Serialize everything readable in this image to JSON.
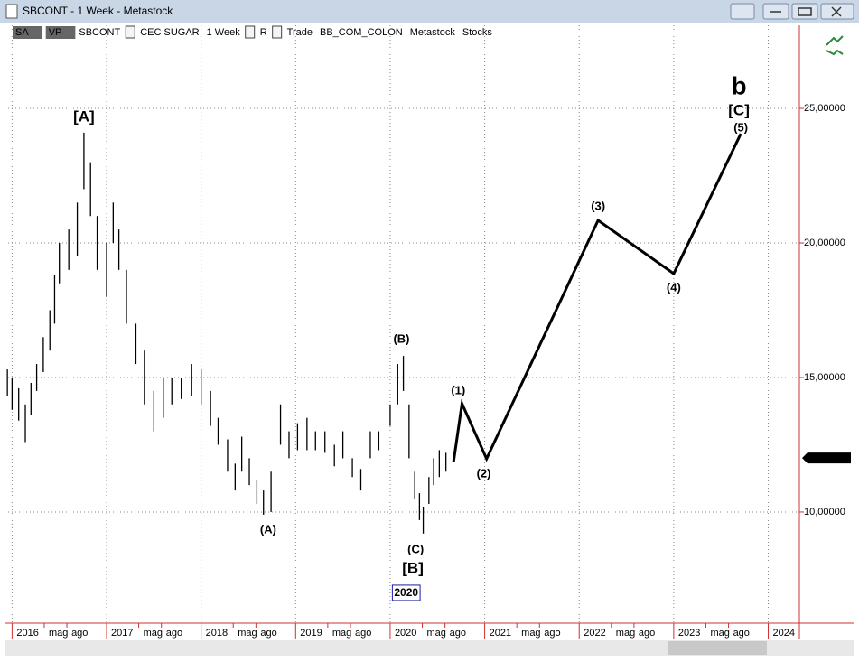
{
  "window": {
    "title": "SBCONT - 1 Week - Metastock"
  },
  "toolbar": {
    "items": [
      "SA",
      "VP",
      "SBCONT",
      "CEC SUGAR",
      "1 Week",
      "R",
      "Trade",
      "BB_COM_COLON",
      "Metastock",
      "Stocks"
    ]
  },
  "chart_data": {
    "type": "bar-wave",
    "bar_color": "#000000",
    "wave_color": "#000000",
    "grid": true,
    "last_price_box": "#000000",
    "xlim": [
      2015.92,
      2024.32
    ],
    "ylim": [
      5.87,
      28.09
    ],
    "xticks": [
      {
        "value": 2016,
        "label": "2016"
      },
      {
        "value": 2016.34,
        "label": "mag"
      },
      {
        "value": 2016.58,
        "label": "ago"
      },
      {
        "value": 2017,
        "label": "2017"
      },
      {
        "value": 2017.34,
        "label": "mag"
      },
      {
        "value": 2017.58,
        "label": "ago"
      },
      {
        "value": 2018,
        "label": "2018"
      },
      {
        "value": 2018.34,
        "label": "mag"
      },
      {
        "value": 2018.58,
        "label": "ago"
      },
      {
        "value": 2019,
        "label": "2019"
      },
      {
        "value": 2019.34,
        "label": "mag"
      },
      {
        "value": 2019.58,
        "label": "ago"
      },
      {
        "value": 2020,
        "label": "2020"
      },
      {
        "value": 2020.34,
        "label": "mag"
      },
      {
        "value": 2020.58,
        "label": "ago"
      },
      {
        "value": 2021,
        "label": "2021"
      },
      {
        "value": 2021.34,
        "label": "mag"
      },
      {
        "value": 2021.58,
        "label": "ago"
      },
      {
        "value": 2022,
        "label": "2022"
      },
      {
        "value": 2022.34,
        "label": "mag"
      },
      {
        "value": 2022.58,
        "label": "ago"
      },
      {
        "value": 2023,
        "label": "2023"
      },
      {
        "value": 2023.34,
        "label": "mag"
      },
      {
        "value": 2023.58,
        "label": "ago"
      },
      {
        "value": 2024,
        "label": "2024"
      }
    ],
    "yticks": [
      {
        "value": 10,
        "label": "10,00000"
      },
      {
        "value": 15,
        "label": "15,00000"
      },
      {
        "value": 20,
        "label": "20,00000"
      },
      {
        "value": 25,
        "label": "25,00000"
      }
    ],
    "last_price": {
      "value": 12.01,
      "label": "12,01000"
    },
    "bars": {
      "x": [
        2015.95,
        2016.0,
        2016.07,
        2016.14,
        2016.2,
        2016.26,
        2016.33,
        2016.4,
        2016.45,
        2016.5,
        2016.6,
        2016.69,
        2016.76,
        2016.83,
        2016.9,
        2017.0,
        2017.07,
        2017.13,
        2017.21,
        2017.31,
        2017.4,
        2017.5,
        2017.6,
        2017.69,
        2017.79,
        2017.9,
        2018.0,
        2018.1,
        2018.18,
        2018.28,
        2018.36,
        2018.43,
        2018.51,
        2018.59,
        2018.66,
        2018.74,
        2018.84,
        2018.93,
        2019.02,
        2019.12,
        2019.21,
        2019.31,
        2019.41,
        2019.5,
        2019.6,
        2019.69,
        2019.79,
        2019.88,
        2020.0,
        2020.08,
        2020.14,
        2020.2,
        2020.26,
        2020.31,
        2020.35,
        2020.41,
        2020.46,
        2020.52,
        2020.59
      ],
      "high": [
        15.3,
        15.0,
        14.6,
        14.0,
        14.8,
        15.5,
        16.5,
        17.5,
        18.8,
        20.0,
        20.5,
        21.5,
        24.1,
        23.0,
        21.0,
        20.0,
        21.5,
        20.5,
        19.0,
        17.0,
        16.0,
        14.5,
        15.0,
        15.0,
        15.0,
        15.5,
        15.3,
        14.5,
        13.5,
        12.7,
        11.8,
        12.8,
        12.0,
        11.2,
        10.8,
        11.5,
        14.0,
        13.0,
        13.3,
        13.5,
        13.0,
        13.0,
        12.5,
        13.0,
        12.0,
        11.6,
        13.0,
        13.0,
        14.0,
        15.5,
        15.8,
        14.0,
        11.5,
        10.7,
        10.2,
        11.3,
        12.0,
        12.3,
        12.2
      ],
      "low": [
        14.3,
        13.8,
        13.4,
        12.6,
        13.6,
        14.5,
        15.2,
        16.0,
        17.0,
        18.5,
        19.0,
        19.5,
        22.0,
        21.0,
        19.0,
        18.0,
        20.0,
        19.0,
        17.0,
        15.5,
        14.0,
        13.0,
        13.5,
        14.0,
        14.2,
        14.3,
        14.0,
        13.2,
        12.5,
        11.5,
        10.8,
        11.5,
        11.0,
        10.3,
        9.9,
        10.0,
        12.5,
        12.0,
        12.3,
        12.3,
        12.3,
        12.2,
        11.7,
        12.0,
        11.3,
        10.8,
        12.0,
        12.3,
        13.2,
        14.0,
        14.5,
        12.0,
        10.5,
        9.7,
        9.2,
        10.3,
        11.0,
        11.3,
        11.5
      ]
    },
    "wave": {
      "x": [
        2020.67,
        2020.76,
        2021.02,
        2022.2,
        2023.0,
        2023.71
      ],
      "values": [
        11.85,
        14.03,
        11.98,
        20.84,
        18.86,
        24.06
      ]
    },
    "annotations": [
      {
        "text": "[A]",
        "x": 2016.76,
        "y": 24.66,
        "color": "#e020e0",
        "style": "bracket"
      },
      {
        "text": "(A)",
        "x": 2018.71,
        "y": 9.33,
        "color": "#1a1aa8",
        "style": "wave"
      },
      {
        "text": "(B)",
        "x": 2020.12,
        "y": 16.41,
        "color": "#1a1aa8",
        "style": "wave"
      },
      {
        "text": "(C)",
        "x": 2020.27,
        "y": 8.59,
        "color": "#1a1aa8",
        "style": "wave"
      },
      {
        "text": "[B]",
        "x": 2020.24,
        "y": 7.89,
        "color": "#e020e0",
        "style": "bracket"
      },
      {
        "text": "2020",
        "x": 2020.17,
        "y": 6.98,
        "color": "#1a1aa8",
        "style": "boxed"
      },
      {
        "text": "(1)",
        "x": 2020.72,
        "y": 14.5,
        "color": "#1a1aa8",
        "style": "wave"
      },
      {
        "text": "(2)",
        "x": 2020.99,
        "y": 11.41,
        "color": "#1a1aa8",
        "style": "wave"
      },
      {
        "text": "(3)",
        "x": 2022.2,
        "y": 21.34,
        "color": "#1a1aa8",
        "style": "wave"
      },
      {
        "text": "(4)",
        "x": 2023.0,
        "y": 18.32,
        "color": "#1a1aa8",
        "style": "wave"
      },
      {
        "text": "(5)",
        "x": 2023.71,
        "y": 24.26,
        "color": "#1a1aa8",
        "style": "wave"
      },
      {
        "text": "[C]",
        "x": 2023.69,
        "y": 24.9,
        "color": "#e020e0",
        "style": "bracket"
      },
      {
        "text": "b",
        "x": 2023.69,
        "y": 25.77,
        "color": "#1a8a1a",
        "style": "big"
      }
    ]
  }
}
